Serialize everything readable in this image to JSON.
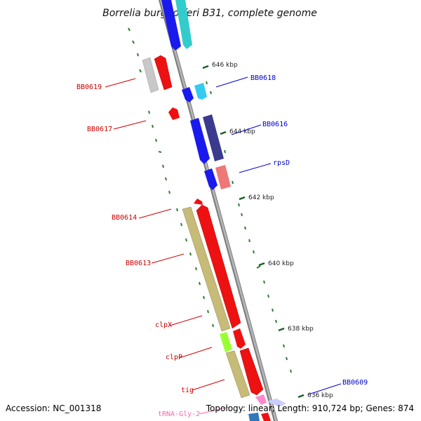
{
  "title": "Borrelia burgdorferi B31, complete genome",
  "footer": {
    "accession": "Accession: NC_001318",
    "topology": "Topology: linear; Length: 910,724 bp; Genes: 874"
  },
  "colors": {
    "red_label": "#cc0000",
    "blue_label": "#0000cc",
    "pink_label": "#ff66aa",
    "tick_green": "#2e7d2e",
    "backbone": "#7a7a7a"
  },
  "ruler": [
    "646 kbp",
    "644 kbp",
    "642 kbp",
    "640 kbp",
    "638 kbp",
    "636 kbp"
  ],
  "gene_labels": {
    "bb0619": "BB0619",
    "bb0618": "BB0618",
    "bb0617": "BB0617",
    "bb0616": "BB0616",
    "rpsd": "rpsD",
    "bb0614": "BB0614",
    "bb0613": "BB0613",
    "clpx": "clpX",
    "clpp": "clpP",
    "tig": "tig",
    "bb0609": "BB0609",
    "trna": "tRNA-Gly-2"
  }
}
